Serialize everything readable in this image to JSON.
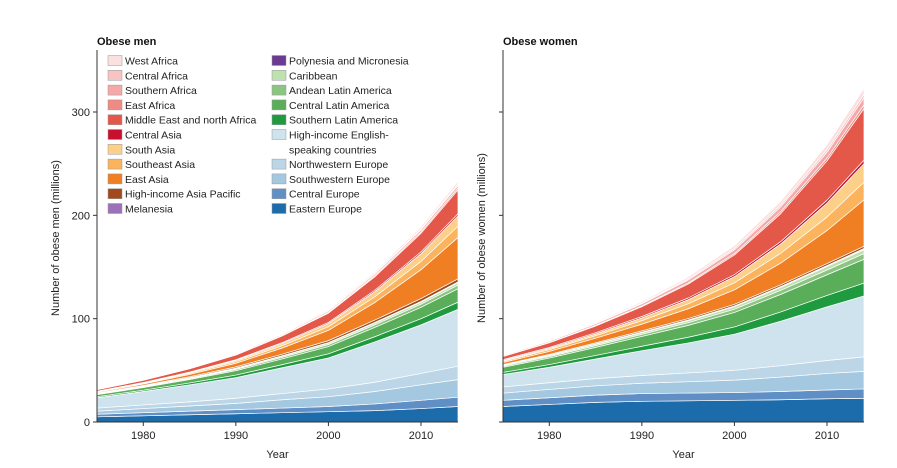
{
  "chart_data": [
    {
      "type": "area",
      "title": "Obese men",
      "xlabel": "Year",
      "ylabel": "Number of obese men (millions)",
      "xlim": [
        1975,
        2014
      ],
      "ylim": [
        0,
        360
      ],
      "xticks": [
        "1980",
        "1990",
        "2000",
        "2010"
      ],
      "yticks": [
        "0",
        "100",
        "200",
        "300"
      ],
      "x": [
        1975,
        1980,
        1985,
        1990,
        1995,
        2000,
        2005,
        2010,
        2014
      ],
      "series": [
        {
          "name": "Eastern Europe",
          "values": [
            5,
            6,
            7,
            8,
            9,
            10,
            11,
            13,
            15
          ]
        },
        {
          "name": "Central Europe",
          "values": [
            2.5,
            3,
            3.5,
            4,
            4.5,
            5,
            6.5,
            8,
            9
          ]
        },
        {
          "name": "Southwestern Europe",
          "values": [
            3,
            4,
            5,
            6,
            8,
            9.5,
            12,
            15,
            17
          ]
        },
        {
          "name": "Northwestern Europe",
          "values": [
            3,
            3.5,
            4,
            5,
            6,
            7.5,
            9,
            11,
            13
          ]
        },
        {
          "name": "High-income English-speaking countries",
          "values": [
            10,
            13,
            16.5,
            20,
            25,
            30,
            39,
            47,
            55
          ]
        },
        {
          "name": "Southern Latin America",
          "values": [
            1,
            1.3,
            1.8,
            2.4,
            3,
            4,
            5,
            6,
            7
          ]
        },
        {
          "name": "Central Latin America",
          "values": [
            2,
            2.6,
            3.3,
            4.3,
            5.5,
            7,
            9,
            11,
            13
          ]
        },
        {
          "name": "Andean Latin America",
          "values": [
            0.5,
            0.7,
            0.9,
            1.2,
            1.6,
            2,
            2.5,
            3,
            3.5
          ]
        },
        {
          "name": "Caribbean",
          "values": [
            0.4,
            0.5,
            0.7,
            0.9,
            1.1,
            1.4,
            1.7,
            2,
            2.3
          ]
        },
        {
          "name": "Polynesia and Micronesia",
          "values": [
            0.1,
            0.1,
            0.15,
            0.2,
            0.2,
            0.25,
            0.3,
            0.35,
            0.4
          ]
        },
        {
          "name": "Melanesia",
          "values": [
            0.05,
            0.1,
            0.1,
            0.15,
            0.2,
            0.2,
            0.3,
            0.35,
            0.4
          ]
        },
        {
          "name": "High-income Asia Pacific",
          "values": [
            0.4,
            0.6,
            0.9,
            1.2,
            1.5,
            1.9,
            2.3,
            2.7,
            3
          ]
        },
        {
          "name": "East Asia",
          "values": [
            0.8,
            1.3,
            2.2,
            3.5,
            6,
            10,
            17,
            28,
            40
          ]
        },
        {
          "name": "Southeast Asia",
          "values": [
            0.4,
            0.6,
            1,
            1.5,
            2.3,
            3.5,
            5.5,
            8,
            11
          ]
        },
        {
          "name": "South Asia",
          "values": [
            0.3,
            0.5,
            0.8,
            1.2,
            2,
            3,
            5,
            7.5,
            10
          ]
        },
        {
          "name": "Central Asia",
          "values": [
            0.3,
            0.4,
            0.5,
            0.7,
            0.9,
            1.1,
            1.4,
            1.7,
            2
          ]
        },
        {
          "name": "Middle East and north Africa",
          "values": [
            1.5,
            2.2,
            3.2,
            4.5,
            6.5,
            9,
            13,
            18,
            23
          ]
        },
        {
          "name": "East Africa",
          "values": [
            0.1,
            0.2,
            0.3,
            0.4,
            0.6,
            0.8,
            1.1,
            1.5,
            2
          ]
        },
        {
          "name": "Southern Africa",
          "values": [
            0.3,
            0.4,
            0.6,
            0.8,
            1,
            1.3,
            1.6,
            2,
            2.5
          ]
        },
        {
          "name": "Central Africa",
          "values": [
            0.1,
            0.1,
            0.2,
            0.3,
            0.4,
            0.5,
            0.7,
            0.9,
            1.2
          ]
        },
        {
          "name": "West Africa",
          "values": [
            0.2,
            0.3,
            0.4,
            0.6,
            0.8,
            1.1,
            1.5,
            2,
            2.7
          ]
        }
      ]
    },
    {
      "type": "area",
      "title": "Obese women",
      "xlabel": "Year",
      "ylabel": "Number of obese women (millions)",
      "xlim": [
        1975,
        2014
      ],
      "ylim": [
        0,
        360
      ],
      "xticks": [
        "1980",
        "1990",
        "2000",
        "2010"
      ],
      "yticks": [
        "0",
        "100",
        "200",
        "300"
      ],
      "x": [
        1975,
        1980,
        1985,
        1990,
        1995,
        2000,
        2005,
        2010,
        2014
      ],
      "series": [
        {
          "name": "Eastern Europe",
          "values": [
            15,
            17,
            19,
            20,
            20.5,
            21,
            21.5,
            22.5,
            23
          ]
        },
        {
          "name": "Central Europe",
          "values": [
            6,
            6.5,
            7,
            7.5,
            7.5,
            7.5,
            8,
            8.5,
            9
          ]
        },
        {
          "name": "Southwestern Europe",
          "values": [
            7,
            8,
            9,
            10,
            11,
            12,
            14,
            16,
            17
          ]
        },
        {
          "name": "Northwestern Europe",
          "values": [
            6,
            6.5,
            7,
            7.5,
            8.5,
            9.5,
            11,
            12.5,
            14
          ]
        },
        {
          "name": "High-income English-speaking countries",
          "values": [
            12,
            15,
            19,
            24,
            29,
            35,
            43,
            52,
            59
          ]
        },
        {
          "name": "Southern Latin America",
          "values": [
            2,
            2.6,
            3.4,
            4.3,
            5.5,
            7,
            9,
            11,
            12.5
          ]
        },
        {
          "name": "Central Latin America",
          "values": [
            5,
            6.3,
            7.8,
            9.5,
            11.5,
            14,
            17,
            20,
            23
          ]
        },
        {
          "name": "Andean Latin America",
          "values": [
            1,
            1.3,
            1.7,
            2.1,
            2.6,
            3.2,
            3.9,
            4.6,
            5.5
          ]
        },
        {
          "name": "Caribbean",
          "values": [
            0.8,
            1,
            1.3,
            1.6,
            2,
            2.4,
            2.8,
            3.3,
            3.8
          ]
        },
        {
          "name": "Polynesia and Micronesia",
          "values": [
            0.1,
            0.15,
            0.2,
            0.25,
            0.3,
            0.35,
            0.4,
            0.45,
            0.5
          ]
        },
        {
          "name": "Melanesia",
          "values": [
            0.1,
            0.15,
            0.2,
            0.25,
            0.3,
            0.35,
            0.4,
            0.5,
            0.6
          ]
        },
        {
          "name": "High-income Asia Pacific",
          "values": [
            0.6,
            0.8,
            1,
            1.2,
            1.4,
            1.6,
            1.8,
            2,
            2.2
          ]
        },
        {
          "name": "East Asia",
          "values": [
            2,
            3,
            4.5,
            6.5,
            9.5,
            14,
            21,
            32,
            45
          ]
        },
        {
          "name": "Southeast Asia",
          "values": [
            1.2,
            1.7,
            2.4,
            3.4,
            4.8,
            6.8,
            9.5,
            13,
            17
          ]
        },
        {
          "name": "South Asia",
          "values": [
            0.8,
            1.2,
            1.8,
            2.7,
            4,
            6,
            9,
            13.5,
            18
          ]
        },
        {
          "name": "Central Asia",
          "values": [
            0.8,
            0.9,
            1.1,
            1.3,
            1.6,
            1.9,
            2.3,
            2.8,
            3.3
          ]
        },
        {
          "name": "Middle East and north Africa",
          "values": [
            3,
            4.5,
            6.5,
            9.5,
            13.5,
            19,
            27,
            38,
            50
          ]
        },
        {
          "name": "East Africa",
          "values": [
            0.3,
            0.4,
            0.6,
            0.8,
            1.1,
            1.5,
            2,
            2.7,
            3.5
          ]
        },
        {
          "name": "Southern Africa",
          "values": [
            0.8,
            1.1,
            1.5,
            2,
            2.7,
            3.5,
            4.5,
            5.7,
            7
          ]
        },
        {
          "name": "Central Africa",
          "values": [
            0.3,
            0.4,
            0.6,
            0.8,
            1.1,
            1.5,
            2,
            2.6,
            3.2
          ]
        },
        {
          "name": "West Africa",
          "values": [
            0.5,
            0.7,
            1,
            1.4,
            1.9,
            2.6,
            3.5,
            4.7,
            6
          ]
        }
      ]
    }
  ],
  "colors": {
    "West Africa": "#fbe0e0",
    "Central Africa": "#f7c3c3",
    "Southern Africa": "#f4a8a8",
    "East Africa": "#ef8a85",
    "Middle East and north Africa": "#e4584a",
    "Central Asia": "#c8102e",
    "South Asia": "#fdd08a",
    "Southeast Asia": "#fbb35e",
    "East Asia": "#f07f23",
    "High-income Asia Pacific": "#a04a1e",
    "Melanesia": "#9b72b8",
    "Polynesia and Micronesia": "#6b3a91",
    "Caribbean": "#bfe0b0",
    "Andean Latin America": "#8cc482",
    "Central Latin America": "#5aae5a",
    "Southern Latin America": "#1f9a3f",
    "High-income English-speaking countries": "#cfe3ee",
    "Northwestern Europe": "#bcd6e8",
    "Southwestern Europe": "#a5c8e1",
    "Central Europe": "#5f8fc4",
    "Eastern Europe": "#1c6bab"
  },
  "legend": {
    "column1": [
      "West Africa",
      "Central Africa",
      "Southern Africa",
      "East Africa",
      "Middle East and north Africa",
      "Central Asia",
      "South Asia",
      "Southeast Asia",
      "East Asia",
      "High-income Asia Pacific",
      "Melanesia"
    ],
    "column2": [
      "Polynesia and Micronesia",
      "Caribbean",
      "Andean Latin America",
      "Central Latin America",
      "Southern Latin America",
      "High-income English-speaking countries",
      "Northwestern Europe",
      "Southwestern Europe",
      "Central Europe",
      "Eastern Europe"
    ],
    "labels": {
      "High-income English-speaking countries": [
        "High-income English-",
        "speaking countries"
      ]
    }
  }
}
